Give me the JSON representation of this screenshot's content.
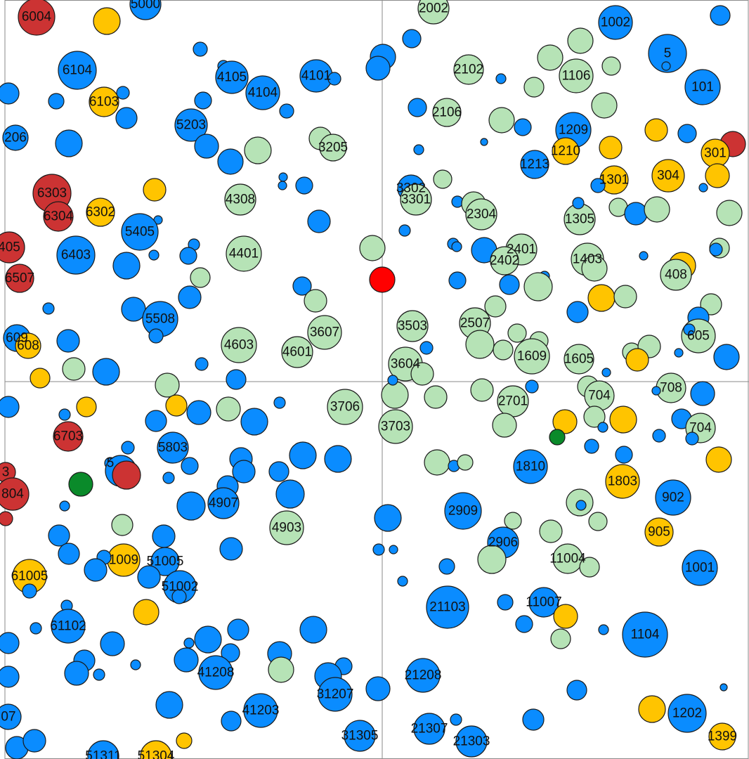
{
  "colors": {
    "blue": "#0a8cff",
    "light_green": "#b6e3b6",
    "yellow": "#ffc400",
    "red": "#cc3333",
    "bright_red": "#ff0000",
    "green": "#0a8a2a"
  },
  "labels": {
    "6004": "6004",
    "5000": "5000",
    "2002": "2002",
    "1002": "1002",
    "5": "5",
    "6104": "6104",
    "4105": "4105",
    "4104": "4104",
    "4101": "4101",
    "2102": "2102",
    "1106": "1106",
    "101": "101",
    "6103": "6103",
    "2106": "2106",
    "5203": "5203",
    "206": "206",
    "3205": "3205",
    "1209": "1209",
    "1210": "1210",
    "1213": "1213",
    "301": "301",
    "6303": "6303",
    "6304": "6304",
    "6302": "6302",
    "4308": "4308",
    "3302": "3302",
    "3301": "3301",
    "2304": "2304",
    "1301": "1301",
    "304": "304",
    "1305": "1305",
    "5405": "5405",
    "405": "405",
    "6403": "6403",
    "4401": "4401",
    "2401": "2401",
    "2402": "2402",
    "1403": "1403",
    "408": "408",
    "6507": "6507",
    "5508": "5508",
    "3607": "3607",
    "3503": "3503",
    "2507": "2507",
    "609": "609",
    "608": "608",
    "4603": "4603",
    "4601": "4601",
    "3604": "3604",
    "1609": "1609",
    "1605": "1605",
    "605": "605",
    "3706": "3706",
    "2701": "2701",
    "704": "704",
    "708": "708",
    "3703": "3703",
    "704b": "704",
    "6703": "6703",
    "5803": "5803",
    "1810": "1810",
    "1803": "1803",
    "5806": "5",
    "803": "3",
    "804": "804",
    "4907": "4907",
    "902": "902",
    "4903": "4903",
    "2909": "2909",
    "905": "905",
    "2906": "2906",
    "61009": "1009",
    "51005": "51005",
    "11004": "11004",
    "1001": "1001",
    "61005": "61005",
    "51002": "51002",
    "21103": "21103",
    "11007": "11007",
    "61102": "61102",
    "1104": "1104",
    "41208": "41208",
    "21208": "21208",
    "31207": "31207",
    "41203": "41203",
    "1202": "1202",
    "207": "07",
    "21307": "21307",
    "31305": "31305",
    "21303": "21303",
    "1399": "1399",
    "51311": "51311",
    "51304": "51304"
  }
}
